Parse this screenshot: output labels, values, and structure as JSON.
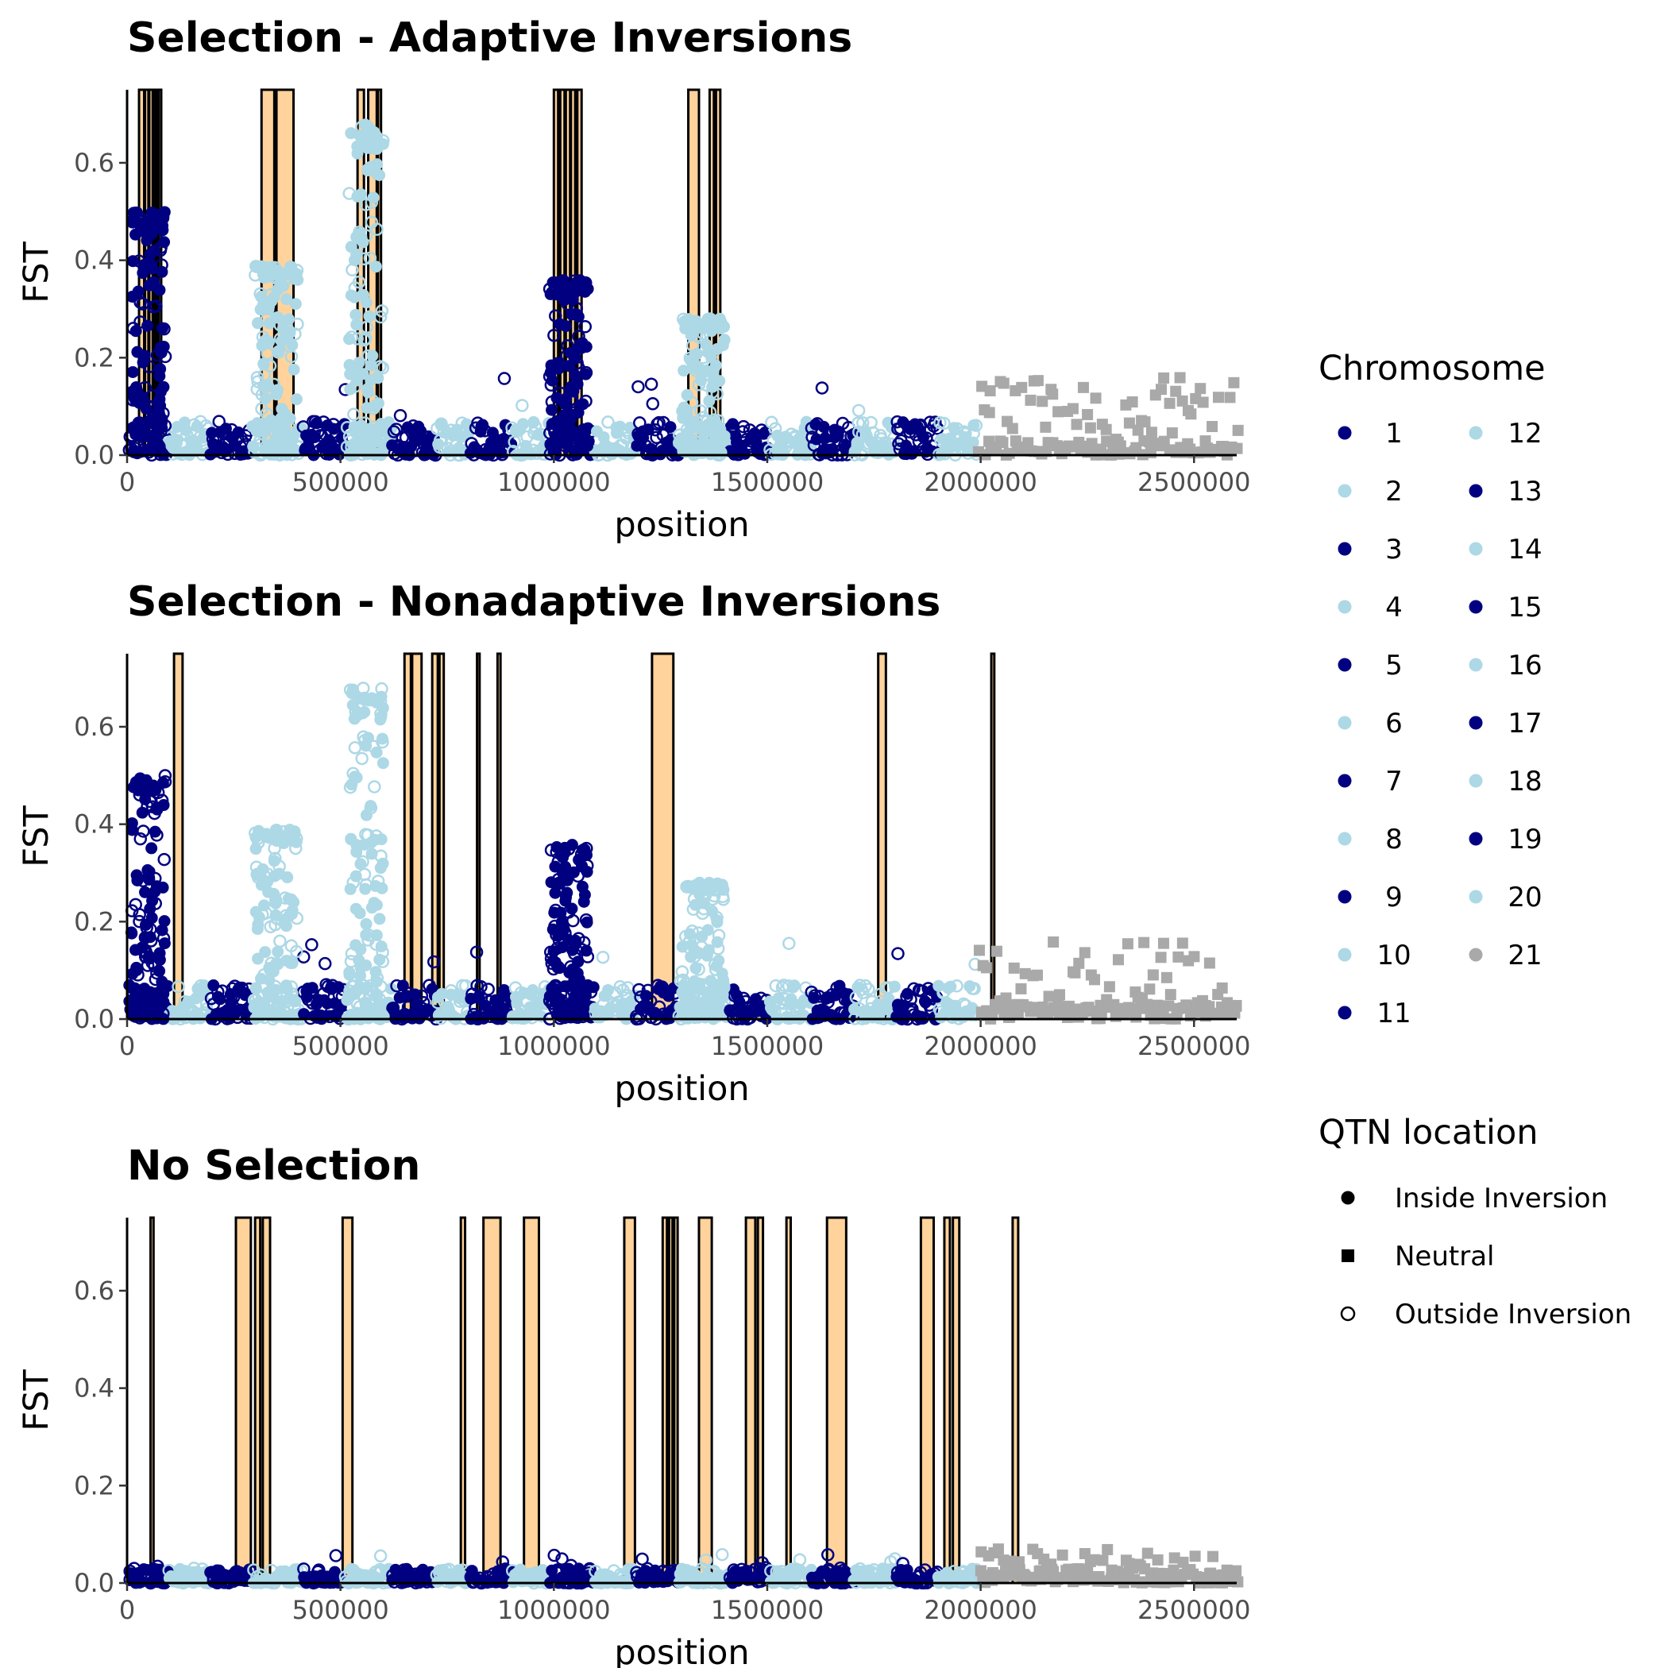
{
  "chart_data": [
    {
      "type": "scatter",
      "title": "Selection - Adaptive Inversions",
      "xlabel": "position",
      "ylabel": "FST",
      "xlim": [
        0,
        2600000
      ],
      "ylim": [
        0,
        0.75
      ],
      "x_ticks": [
        0,
        500000,
        1000000,
        1500000,
        2000000,
        2500000
      ],
      "x_tick_labels": [
        "0",
        "500000",
        "1000000",
        "1500000",
        "2000000",
        "2500000"
      ],
      "y_ticks": [
        0,
        0.2,
        0.4,
        0.6
      ],
      "y_tick_labels": [
        "0.0",
        "0.2",
        "0.4",
        "0.6"
      ],
      "inversions": [
        [
          28000,
          40000
        ],
        [
          42000,
          50000
        ],
        [
          52000,
          60000
        ],
        [
          65000,
          70000
        ],
        [
          74000,
          80000
        ],
        [
          315000,
          345000
        ],
        [
          350000,
          390000
        ],
        [
          540000,
          555000
        ],
        [
          565000,
          585000
        ],
        [
          588000,
          595000
        ],
        [
          1000000,
          1010000
        ],
        [
          1015000,
          1025000
        ],
        [
          1028000,
          1038000
        ],
        [
          1040000,
          1050000
        ],
        [
          1055000,
          1065000
        ],
        [
          1315000,
          1340000
        ],
        [
          1365000,
          1375000
        ],
        [
          1380000,
          1390000
        ]
      ],
      "peaks": [
        {
          "start": 10000,
          "end": 90000,
          "max_fst": 0.5,
          "chromosome": 1
        },
        {
          "start": 300000,
          "end": 400000,
          "max_fst": 0.39,
          "chromosome": 4
        },
        {
          "start": 520000,
          "end": 600000,
          "max_fst": 0.68,
          "chromosome": 6
        },
        {
          "start": 990000,
          "end": 1080000,
          "max_fst": 0.36,
          "chromosome": 11
        },
        {
          "start": 1300000,
          "end": 1400000,
          "max_fst": 0.28,
          "chromosome": 14
        }
      ],
      "neutral_max_fst": 0.16
    },
    {
      "type": "scatter",
      "title": "Selection - Nonadaptive Inversions",
      "xlabel": "position",
      "ylabel": "FST",
      "xlim": [
        0,
        2600000
      ],
      "ylim": [
        0,
        0.75
      ],
      "x_ticks": [
        0,
        500000,
        1000000,
        1500000,
        2000000,
        2500000
      ],
      "x_tick_labels": [
        "0",
        "500000",
        "1000000",
        "1500000",
        "2000000",
        "2500000"
      ],
      "y_ticks": [
        0,
        0.2,
        0.4,
        0.6
      ],
      "y_tick_labels": [
        "0.0",
        "0.2",
        "0.4",
        "0.6"
      ],
      "inversions": [
        [
          110000,
          130000
        ],
        [
          650000,
          665000
        ],
        [
          668000,
          690000
        ],
        [
          715000,
          728000
        ],
        [
          732000,
          742000
        ],
        [
          820000,
          826000
        ],
        [
          868000,
          875000
        ],
        [
          1230000,
          1280000
        ],
        [
          1760000,
          1778000
        ],
        [
          2025000,
          2032000
        ]
      ],
      "peaks": [
        {
          "start": 10000,
          "end": 90000,
          "max_fst": 0.5,
          "chromosome": 1
        },
        {
          "start": 300000,
          "end": 400000,
          "max_fst": 0.39,
          "chromosome": 4
        },
        {
          "start": 520000,
          "end": 600000,
          "max_fst": 0.68,
          "chromosome": 6
        },
        {
          "start": 990000,
          "end": 1080000,
          "max_fst": 0.36,
          "chromosome": 11
        },
        {
          "start": 1300000,
          "end": 1400000,
          "max_fst": 0.28,
          "chromosome": 14
        }
      ],
      "neutral_max_fst": 0.16
    },
    {
      "type": "scatter",
      "title": "No Selection",
      "xlabel": "position",
      "ylabel": "FST",
      "xlim": [
        0,
        2600000
      ],
      "ylim": [
        0,
        0.75
      ],
      "x_ticks": [
        0,
        500000,
        1000000,
        1500000,
        2000000,
        2500000
      ],
      "x_tick_labels": [
        "0",
        "500000",
        "1000000",
        "1500000",
        "2000000",
        "2500000"
      ],
      "y_ticks": [
        0,
        0.2,
        0.4,
        0.6
      ],
      "y_tick_labels": [
        "0.0",
        "0.2",
        "0.4",
        "0.6"
      ],
      "inversions": [
        [
          55000,
          62000
        ],
        [
          255000,
          290000
        ],
        [
          300000,
          312000
        ],
        [
          318000,
          335000
        ],
        [
          505000,
          528000
        ],
        [
          782000,
          792000
        ],
        [
          835000,
          875000
        ],
        [
          930000,
          965000
        ],
        [
          1165000,
          1190000
        ],
        [
          1255000,
          1265000
        ],
        [
          1270000,
          1278000
        ],
        [
          1282000,
          1290000
        ],
        [
          1340000,
          1370000
        ],
        [
          1450000,
          1472000
        ],
        [
          1478000,
          1490000
        ],
        [
          1545000,
          1555000
        ],
        [
          1640000,
          1685000
        ],
        [
          1860000,
          1890000
        ],
        [
          1915000,
          1928000
        ],
        [
          1935000,
          1950000
        ],
        [
          2075000,
          2088000
        ]
      ],
      "peaks": [],
      "neutral_max_fst": 0.07
    }
  ],
  "chromosome_boundaries": [
    0,
    95000,
    190000,
    290000,
    410000,
    510000,
    620000,
    720000,
    800000,
    900000,
    990000,
    1090000,
    1190000,
    1290000,
    1410000,
    1500000,
    1600000,
    1700000,
    1800000,
    1900000,
    1990000,
    2600000
  ],
  "colors": {
    "odd_chromosome": "#000080",
    "even_chromosome": "#ADD8E6",
    "neutral": "#A9A9A9",
    "inversion_fill": "#FFD39B",
    "inversion_border": "#000000"
  },
  "legend": {
    "chromosome_title": "Chromosome",
    "chromosomes": [
      "1",
      "2",
      "3",
      "4",
      "5",
      "6",
      "7",
      "8",
      "9",
      "10",
      "11",
      "12",
      "13",
      "14",
      "15",
      "16",
      "17",
      "18",
      "19",
      "20",
      "21"
    ],
    "qtn_title": "QTN location",
    "qtn_items": [
      "Inside Inversion",
      "Neutral",
      "Outside Inversion"
    ]
  }
}
